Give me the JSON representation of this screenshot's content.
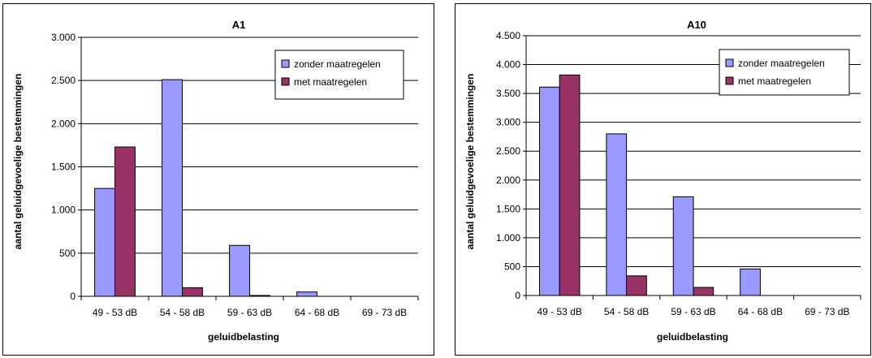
{
  "chart_data": [
    {
      "type": "bar",
      "title": "A1",
      "xlabel": "geluidbelasting",
      "ylabel": "aantal geluidgevoelige bestemmingen",
      "categories": [
        "49 - 53 dB",
        "54 - 58 dB",
        "59 - 63 dB",
        "64 - 68 dB",
        "69 - 73 dB"
      ],
      "series": [
        {
          "name": "zonder maatregelen",
          "color": "#9999FF",
          "values": [
            1250,
            2510,
            590,
            50,
            0
          ]
        },
        {
          "name": "met maatregelen",
          "color": "#993366",
          "values": [
            1730,
            100,
            10,
            0,
            0
          ]
        }
      ],
      "ylim": [
        0,
        3000
      ],
      "yticks": [
        0,
        500,
        1000,
        1500,
        2000,
        2500,
        3000
      ],
      "ytick_labels": [
        "0",
        "500",
        "1.000",
        "1.500",
        "2.000",
        "2.500",
        "3.000"
      ],
      "grid": true,
      "legend_position": "top-right"
    },
    {
      "type": "bar",
      "title": "A10",
      "xlabel": "geluidbelasting",
      "ylabel": "aantal geluidgevoelige bestemmingen",
      "categories": [
        "49 - 53 dB",
        "54 - 58 dB",
        "59 - 63 dB",
        "64 - 68 dB",
        "69 - 73 dB"
      ],
      "series": [
        {
          "name": "zonder maatregelen",
          "color": "#9999FF",
          "values": [
            3610,
            2800,
            1710,
            460,
            0
          ]
        },
        {
          "name": "met maatregelen",
          "color": "#993366",
          "values": [
            3820,
            340,
            140,
            0,
            0
          ]
        }
      ],
      "ylim": [
        0,
        4500
      ],
      "yticks": [
        0,
        500,
        1000,
        1500,
        2000,
        2500,
        3000,
        3500,
        4000,
        4500
      ],
      "ytick_labels": [
        "0",
        "500",
        "1.000",
        "1.500",
        "2.000",
        "2.500",
        "3.000",
        "3.500",
        "4.000",
        "4.500"
      ],
      "grid": true,
      "legend_position": "top-right"
    }
  ]
}
